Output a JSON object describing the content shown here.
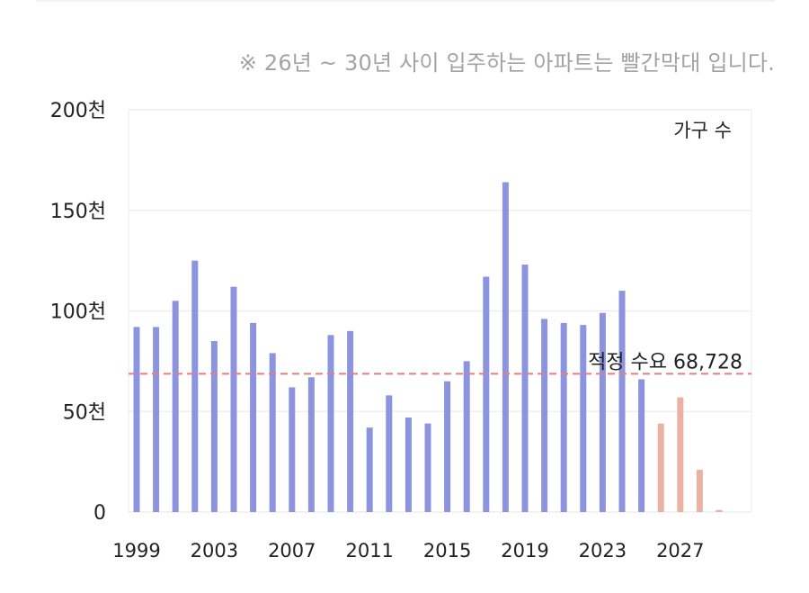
{
  "note": "※ 26년 ~ 30년 사이 입주하는 아파트는 빨간막대 입니다.",
  "colors": {
    "actual": "#8c94e0",
    "future": "#ebb2a4",
    "ref_line": "#e08080",
    "grid": "#ebebeb"
  },
  "chart_data": {
    "type": "bar",
    "legend_label": "가구 수",
    "ylim": [
      0,
      200000
    ],
    "y_ticks": [
      {
        "value": 0,
        "label": "0"
      },
      {
        "value": 50000,
        "label": "50천"
      },
      {
        "value": 100000,
        "label": "100천"
      },
      {
        "value": 150000,
        "label": "150천"
      },
      {
        "value": 200000,
        "label": "200천"
      }
    ],
    "x_tick_labels": [
      "1999",
      "2003",
      "2007",
      "2011",
      "2015",
      "2019",
      "2023",
      "2027"
    ],
    "categories": [
      "1999",
      "2000",
      "2001",
      "2002",
      "2003",
      "2004",
      "2005",
      "2006",
      "2007",
      "2008",
      "2009",
      "2010",
      "2011",
      "2012",
      "2013",
      "2014",
      "2015",
      "2016",
      "2017",
      "2018",
      "2019",
      "2020",
      "2021",
      "2022",
      "2023",
      "2024",
      "2025",
      "2026",
      "2027",
      "2028",
      "2029"
    ],
    "values": [
      92000,
      92000,
      105000,
      125000,
      85000,
      112000,
      94000,
      79000,
      62000,
      67000,
      88000,
      90000,
      42000,
      58000,
      47000,
      44000,
      65000,
      75000,
      117000,
      164000,
      123000,
      96000,
      94000,
      93000,
      99000,
      110000,
      66000,
      44000,
      57000,
      21000,
      1000
    ],
    "future_from": "2026",
    "reference": {
      "value": 68728,
      "label": "적정 수요 68,728"
    }
  }
}
